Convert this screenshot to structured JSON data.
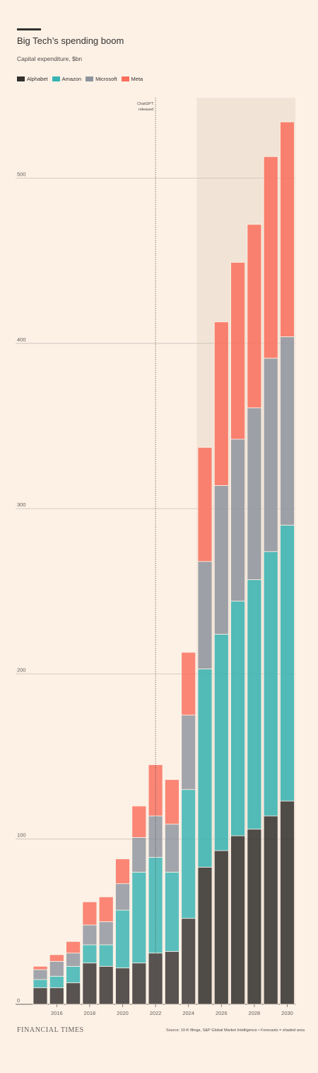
{
  "title": "Big Tech’s spending boom",
  "subtitle": "Capital expenditure, $bn",
  "legend": [
    {
      "name": "Alphabet",
      "color": "#33302e"
    },
    {
      "name": "Amazon",
      "color": "#36b3b2"
    },
    {
      "name": "Microsoft",
      "color": "#8e949d"
    },
    {
      "name": "Meta",
      "color": "#fa6e5c"
    }
  ],
  "annotation": "ChatGPT\nreleased",
  "footer": {
    "logo": "FINANCIAL TIMES",
    "source": "Source: 10-K filings, S&P Global Market Intelligence • Forecasts = shaded area"
  },
  "chart_data": {
    "type": "bar",
    "stacked": true,
    "categories": [
      2015,
      2016,
      2017,
      2018,
      2019,
      2020,
      2021,
      2022,
      2023,
      2024,
      2025,
      2026,
      2027,
      2028,
      2029,
      2030
    ],
    "x_tick_labels": [
      "2016",
      "2018",
      "2020",
      "2022",
      "2024",
      "2026",
      "2028",
      "2030"
    ],
    "ylim": [
      0,
      540
    ],
    "y_ticks": [
      0,
      100,
      200,
      300,
      400,
      500
    ],
    "grid": true,
    "forecast_start": 2025,
    "annotation_x": 2022,
    "series": [
      {
        "name": "Alphabet",
        "color": "#33302e",
        "values": [
          10,
          10,
          13,
          25,
          23,
          22,
          25,
          31,
          32,
          52,
          83,
          93,
          102,
          106,
          114,
          123
        ]
      },
      {
        "name": "Amazon",
        "color": "#36b3b2",
        "values": [
          5,
          7,
          10,
          11,
          13,
          35,
          55,
          58,
          48,
          78,
          120,
          131,
          142,
          151,
          160,
          167
        ]
      },
      {
        "name": "Microsoft",
        "color": "#8e949d",
        "values": [
          6,
          9,
          8,
          12,
          14,
          16,
          21,
          25,
          29,
          45,
          65,
          90,
          98,
          104,
          117,
          114
        ]
      },
      {
        "name": "Meta",
        "color": "#fa6e5c",
        "values": [
          2,
          4,
          7,
          14,
          15,
          15,
          19,
          31,
          27,
          38,
          69,
          99,
          107,
          111,
          122,
          130
        ]
      }
    ]
  }
}
